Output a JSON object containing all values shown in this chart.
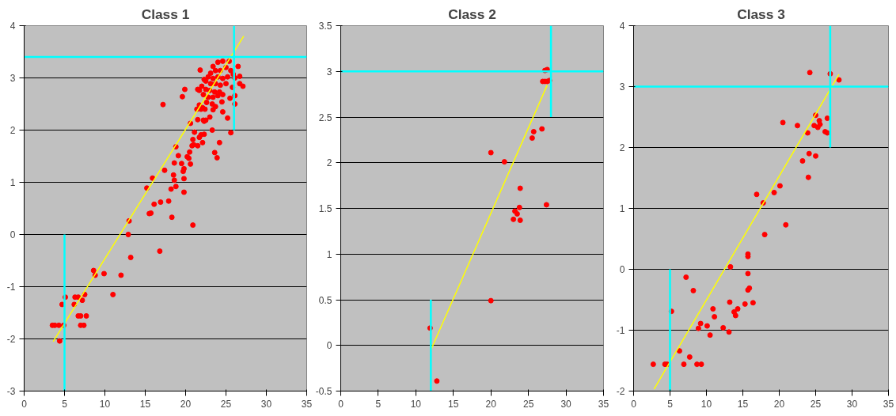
{
  "chart_data": [
    {
      "type": "scatter",
      "title": "Class 1",
      "xlim": [
        0,
        35
      ],
      "xticks": [
        0,
        5,
        10,
        15,
        20,
        25,
        30,
        35
      ],
      "ylim": [
        -3,
        4
      ],
      "yticks": [
        -3,
        -2,
        -1,
        0,
        1,
        2,
        3,
        4
      ],
      "grid": "y",
      "line_style": "solid",
      "series": [
        {
          "marker": "circle",
          "color": "#ff0000",
          "x": [
            3.5,
            3.8,
            4.3,
            4.4,
            4.7,
            4.9,
            5.1,
            6.2,
            6.3,
            6.7,
            6.7,
            7.0,
            7.0,
            7.2,
            7.4,
            7.5,
            7.7,
            8.6,
            8.8,
            9.9,
            11.0,
            12.0,
            12.9,
            13.0,
            13.2,
            15.2,
            15.5,
            15.7,
            15.9,
            16.1,
            16.9,
            17.2,
            16.8,
            17.4,
            17.9,
            18.2,
            18.3,
            18.5,
            18.6,
            18.6,
            18.8,
            18.8,
            19.1,
            19.5,
            19.6,
            19.8,
            19.8,
            19.7,
            19.8,
            19.9,
            20.2,
            20.4,
            20.6,
            20.5,
            20.9,
            20.6,
            20.8,
            20.9,
            21.0,
            21.1,
            21.5,
            21.5,
            21.5,
            21.7,
            21.8,
            21.9,
            21.9,
            22.1,
            22.2,
            22.3,
            22.3,
            22.3,
            22.5,
            23.0,
            23.3,
            23.4,
            23.6,
            23.9,
            24.2,
            24.6,
            25.2,
            25.6,
            26.1,
            26.1,
            26.1,
            26.5,
            26.7,
            26.7,
            27.1,
            25.8,
            25.5,
            24.0,
            24.6,
            25.4,
            23.4,
            23.7,
            24.3,
            25.0,
            25.6,
            23.1,
            22.8,
            23.4,
            24.0,
            24.6,
            25.2,
            25.9,
            22.5,
            23.1,
            23.7,
            24.3,
            25.0,
            22.0,
            22.5,
            23.0,
            23.6,
            24.2,
            21.7,
            22.2,
            22.8,
            23.4,
            24.0,
            24.6,
            22.6,
            23.3,
            23.7,
            24.5,
            22.1,
            22.4,
            21.7,
            21.4
          ],
          "values": [
            -1.74,
            -1.74,
            -1.74,
            -2.04,
            -1.34,
            -1.74,
            -1.2,
            -1.34,
            -1.2,
            -1.2,
            -1.56,
            -1.56,
            -1.74,
            -1.26,
            -1.74,
            -1.15,
            -1.56,
            -0.69,
            -0.78,
            -0.75,
            -1.15,
            -0.78,
            0.0,
            0.26,
            -0.44,
            0.89,
            0.4,
            0.41,
            1.08,
            0.58,
            0.62,
            2.49,
            -0.32,
            1.23,
            0.64,
            0.87,
            0.33,
            1.14,
            1.04,
            1.37,
            0.92,
            1.68,
            1.51,
            1.36,
            2.64,
            1.07,
            0.81,
            1.21,
            1.26,
            2.78,
            1.49,
            1.46,
            1.35,
            1.58,
            0.18,
            2.13,
            1.7,
            1.82,
            1.72,
            1.96,
            2.2,
            1.7,
            2.78,
            1.86,
            3.15,
            2.4,
            1.91,
            1.76,
            2.19,
            2.97,
            1.92,
            2.17,
            2.19,
            2.25,
            2.0,
            2.39,
            1.57,
            1.47,
            1.76,
            2.35,
            2.23,
            1.95,
            2.5,
            2.66,
            3.0,
            3.22,
            3.03,
            2.89,
            2.84,
            2.82,
            2.61,
            3.3,
            3.32,
            3.32,
            3.22,
            3.14,
            3.14,
            3.2,
            3.14,
            3.09,
            3.02,
            2.99,
            3.02,
            2.99,
            3.02,
            3.07,
            2.94,
            2.89,
            2.89,
            2.86,
            2.89,
            2.84,
            2.78,
            2.76,
            2.73,
            2.73,
            2.76,
            2.68,
            2.63,
            2.63,
            2.66,
            2.68,
            2.53,
            2.5,
            2.45,
            2.54,
            2.43,
            2.4,
            2.48,
            2.4
          ]
        },
        {
          "type": "line",
          "color": "#ffff00",
          "x": [
            3.6,
            27.2
          ],
          "values": [
            -2.05,
            3.8
          ]
        },
        {
          "type": "line",
          "color": "#00ffff",
          "x": [
            5,
            5
          ],
          "values": [
            -3,
            0
          ]
        },
        {
          "type": "line",
          "color": "#00ffff",
          "x": [
            0,
            35
          ],
          "values": [
            3.4,
            3.4
          ]
        },
        {
          "type": "line",
          "color": "#00ffff",
          "x": [
            26,
            26
          ],
          "values": [
            2,
            4
          ]
        }
      ]
    },
    {
      "type": "scatter",
      "title": "Class 2",
      "xlim": [
        0,
        35
      ],
      "xticks": [
        0,
        5,
        10,
        15,
        20,
        25,
        30,
        35
      ],
      "ylim": [
        -0.5,
        3.5
      ],
      "yticks": [
        -0.5,
        0,
        0.5,
        1,
        1.5,
        2,
        2.5,
        3,
        3.5
      ],
      "grid": "y",
      "line_style": "solid",
      "series": [
        {
          "marker": "circle",
          "color": "#ff0000",
          "x": [
            11.9,
            12.8,
            20.0,
            20.0,
            21.8,
            23.0,
            23.2,
            23.5,
            23.8,
            23.9,
            23.9,
            25.5,
            25.7,
            26.8,
            27.4,
            26.9,
            27.2,
            27.5,
            27.8,
            27.2,
            27.5
          ],
          "values": [
            0.19,
            -0.39,
            2.11,
            0.49,
            2.01,
            1.38,
            1.47,
            1.44,
            1.51,
            1.37,
            1.72,
            2.27,
            2.34,
            2.37,
            1.54,
            2.89,
            2.89,
            2.89,
            2.9,
            3.01,
            3.02
          ]
        },
        {
          "type": "line",
          "color": "#ffff00",
          "x": [
            12.0,
            27.5
          ],
          "values": [
            -0.05,
            2.85
          ]
        },
        {
          "type": "line",
          "color": "#00ffff",
          "x": [
            12,
            12
          ],
          "values": [
            -0.5,
            0.5
          ]
        },
        {
          "type": "line",
          "color": "#00ffff",
          "x": [
            0,
            35
          ],
          "values": [
            3,
            3
          ]
        },
        {
          "type": "line",
          "color": "#00ffff",
          "x": [
            28,
            28
          ],
          "values": [
            2.5,
            3.5
          ]
        }
      ]
    },
    {
      "type": "scatter",
      "title": "Class 3",
      "xlim": [
        0,
        35
      ],
      "xticks": [
        0,
        5,
        10,
        15,
        20,
        25,
        30,
        35
      ],
      "ylim": [
        -2,
        4
      ],
      "yticks": [
        -2,
        -1,
        0,
        1,
        2,
        3,
        4
      ],
      "grid": "y",
      "line_style": "solid",
      "series": [
        {
          "marker": "circle",
          "color": "#ff0000",
          "x": [
            2.7,
            4.3,
            4.6,
            5.2,
            6.3,
            6.9,
            7.2,
            7.7,
            8.2,
            8.7,
            8.9,
            9.2,
            9.3,
            10.1,
            10.5,
            10.9,
            11.1,
            12.3,
            13.1,
            13.2,
            13.3,
            13.8,
            14.0,
            14.3,
            15.3,
            15.7,
            15.7,
            15.7,
            15.7,
            15.9,
            16.4,
            16.9,
            17.8,
            18.0,
            19.3,
            20.1,
            20.5,
            20.9,
            22.5,
            23.2,
            23.9,
            24.0,
            24.1,
            24.2,
            24.8,
            25.0,
            25.0,
            25.3,
            25.5,
            25.6,
            26.3,
            26.6,
            26.6,
            27.0,
            28.2
          ],
          "values": [
            -1.56,
            -1.56,
            -1.56,
            -0.69,
            -1.34,
            -1.56,
            -0.13,
            -1.44,
            -0.35,
            -1.56,
            -0.97,
            -0.89,
            -1.56,
            -0.93,
            -1.08,
            -0.65,
            -0.78,
            -0.96,
            -1.03,
            -0.54,
            0.04,
            -0.7,
            -0.76,
            -0.65,
            -0.57,
            0.25,
            0.21,
            -0.07,
            -0.34,
            -0.31,
            -0.55,
            1.23,
            1.09,
            0.57,
            1.26,
            1.37,
            2.41,
            0.73,
            2.36,
            1.78,
            2.24,
            1.51,
            1.9,
            3.23,
            2.36,
            2.53,
            1.86,
            2.33,
            2.44,
            2.38,
            2.26,
            2.24,
            2.48,
            3.21,
            3.11
          ]
        },
        {
          "type": "line",
          "color": "#ffff00",
          "x": [
            2.8,
            28.2
          ],
          "values": [
            -1.97,
            3.2
          ]
        },
        {
          "type": "line",
          "color": "#00ffff",
          "x": [
            5,
            5
          ],
          "values": [
            -2,
            0
          ]
        },
        {
          "type": "line",
          "color": "#00ffff",
          "x": [
            0,
            35
          ],
          "values": [
            3,
            3
          ]
        },
        {
          "type": "line",
          "color": "#00ffff",
          "x": [
            27,
            27
          ],
          "values": [
            2,
            4
          ]
        }
      ]
    }
  ]
}
